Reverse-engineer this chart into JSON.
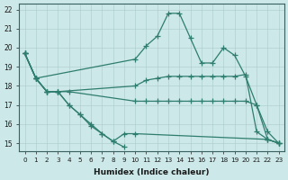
{
  "xlabel": "Humidex (Indice chaleur)",
  "bg_color": "#cce8e8",
  "grid_color": "#b8d8d8",
  "line_color": "#2e7d6e",
  "xlim": [
    -0.5,
    23.5
  ],
  "ylim": [
    14.6,
    22.3
  ],
  "yticks": [
    15,
    16,
    17,
    18,
    19,
    20,
    21,
    22
  ],
  "xticks": [
    0,
    1,
    2,
    3,
    4,
    5,
    6,
    7,
    8,
    9,
    10,
    11,
    12,
    13,
    14,
    15,
    16,
    17,
    18,
    19,
    20,
    21,
    22,
    23
  ],
  "lines": [
    {
      "x": [
        0,
        1,
        10,
        11,
        12,
        13,
        14,
        15,
        16,
        17,
        18,
        19,
        20,
        21,
        22,
        23
      ],
      "y": [
        19.7,
        18.4,
        19.4,
        20.1,
        20.6,
        21.8,
        21.8,
        20.5,
        19.2,
        19.2,
        20.0,
        19.6,
        18.5,
        17.0,
        15.6,
        15.0
      ]
    },
    {
      "x": [
        0,
        1,
        2,
        3,
        10,
        11,
        12,
        13,
        14,
        15,
        16,
        17,
        18,
        19,
        20,
        21,
        22,
        23
      ],
      "y": [
        19.7,
        18.4,
        17.7,
        17.7,
        18.0,
        18.3,
        18.4,
        18.5,
        18.5,
        18.5,
        18.5,
        18.5,
        18.5,
        18.5,
        18.6,
        15.6,
        15.2,
        15.0
      ]
    },
    {
      "x": [
        0,
        1,
        2,
        3,
        4,
        10,
        11,
        12,
        13,
        14,
        15,
        16,
        17,
        18,
        19,
        20,
        21,
        22,
        23
      ],
      "y": [
        19.7,
        18.4,
        17.7,
        17.7,
        17.7,
        17.2,
        17.2,
        17.2,
        17.2,
        17.2,
        17.2,
        17.2,
        17.2,
        17.2,
        17.2,
        17.2,
        17.0,
        15.2,
        15.0
      ]
    },
    {
      "x": [
        0,
        1,
        2,
        3,
        4,
        5,
        6,
        7,
        8,
        9,
        10,
        22,
        23
      ],
      "y": [
        19.7,
        18.4,
        17.7,
        17.7,
        17.0,
        16.5,
        16.0,
        15.5,
        15.1,
        15.5,
        15.5,
        15.2,
        15.0
      ]
    },
    {
      "x": [
        0,
        1,
        2,
        3,
        4,
        5,
        6,
        7,
        8,
        9
      ],
      "y": [
        19.7,
        18.4,
        17.7,
        17.7,
        17.0,
        16.5,
        15.9,
        15.5,
        15.1,
        14.8
      ]
    }
  ]
}
